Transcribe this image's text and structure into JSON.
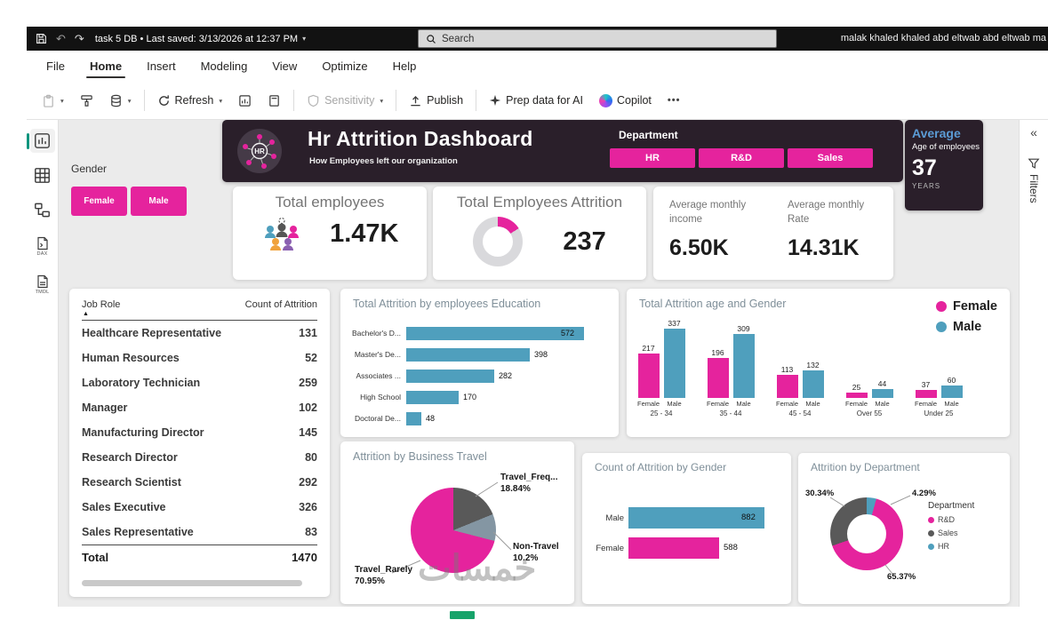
{
  "colors": {
    "pink": "#e5239d",
    "blue": "#4f9fbd",
    "dark_panel": "#2a1f2a",
    "gray_slice": "#595959",
    "steel_slice": "#8496a3",
    "green_accent": "#17a36a",
    "average_blue": "#5b9bd5",
    "card_donut_rest": "#d9d9dc"
  },
  "glyphs": {
    "caret_down": "▾",
    "sort_asc": "▲",
    "undo": "↶",
    "redo": "↷"
  },
  "titlebar": {
    "doc_title": "task 5 DB • Last saved: 3/13/2026 at 12:37 PM",
    "search_placeholder": "Search",
    "user_name": "malak khaled khaled abd eltwab abd eltwab ma"
  },
  "menu": {
    "items": [
      "File",
      "Home",
      "Insert",
      "Modeling",
      "View",
      "Optimize",
      "Help"
    ],
    "active": "Home"
  },
  "toolbar": {
    "refresh_label": "Refresh",
    "sensitivity_label": "Sensitivity",
    "publish_label": "Publish",
    "prep_ai_label": "Prep data for AI",
    "copilot_label": "Copilot",
    "more_label": "•••"
  },
  "left_rail": {
    "dax_label": "DAX",
    "tmdl_label": "TMDL"
  },
  "right_rail": {
    "collapse_glyph": "«",
    "filters_label": "Filters"
  },
  "dashboard": {
    "header": {
      "badge_text": "HR",
      "title": "Hr Attrition Dashboard",
      "subtitle": "How Employees left our organization",
      "department_label": "Department",
      "department_buttons": [
        "HR",
        "R&D",
        "Sales"
      ]
    },
    "average_age": {
      "line1": "Average",
      "line2": "Age of employees",
      "value": "37",
      "unit": "YEARS"
    },
    "gender_slicer": {
      "label": "Gender",
      "buttons": [
        "Female",
        "Male"
      ]
    },
    "cards": {
      "total_employees": {
        "title": "Total employees",
        "value": "1.47K"
      },
      "attrition": {
        "title": "Total Employees Attrition",
        "value": "237",
        "donut_pct": 16
      },
      "income": {
        "title": "Average monthly income",
        "value": "6.50K"
      },
      "rate": {
        "title": "Average monthly Rate",
        "value": "14.31K"
      }
    },
    "watermark": "خمسات"
  },
  "chart_data": [
    {
      "id": "job_table",
      "type": "table",
      "columns": [
        "Job Role",
        "Count of Attrition"
      ],
      "rows": [
        [
          "Healthcare Representative",
          "131"
        ],
        [
          "Human Resources",
          "52"
        ],
        [
          "Laboratory Technician",
          "259"
        ],
        [
          "Manager",
          "102"
        ],
        [
          "Manufacturing Director",
          "145"
        ],
        [
          "Research Director",
          "80"
        ],
        [
          "Research Scientist",
          "292"
        ],
        [
          "Sales Executive",
          "326"
        ],
        [
          "Sales Representative",
          "83"
        ]
      ],
      "total_row": [
        "Total",
        "1470"
      ]
    },
    {
      "id": "education",
      "type": "bar",
      "orientation": "horizontal",
      "title": "Total Attrition by employees Education",
      "categories": [
        "Bachelor's D...",
        "Master's De...",
        "Associates ...",
        "High School",
        "Doctoral De..."
      ],
      "values": [
        572,
        398,
        282,
        170,
        48
      ],
      "bar_color": "#4f9fbd",
      "xlim": [
        0,
        600
      ]
    },
    {
      "id": "age_gender",
      "type": "bar",
      "orientation": "vertical",
      "title": "Total Attrition age and Gender",
      "categories": [
        "25 - 34",
        "35 - 44",
        "45 - 54",
        "Over 55",
        "Under 25"
      ],
      "series": [
        {
          "name": "Female",
          "color": "#e5239d",
          "values": [
            217,
            196,
            113,
            25,
            37
          ]
        },
        {
          "name": "Male",
          "color": "#4f9fbd",
          "values": [
            337,
            309,
            132,
            44,
            60
          ]
        }
      ],
      "ylim": [
        0,
        360
      ],
      "legend_position": "top-right"
    },
    {
      "id": "business_travel",
      "type": "pie",
      "title": "Attrition by Business Travel",
      "slices": [
        {
          "label": "Travel_Freq...",
          "pct": 18.84,
          "color": "#595959"
        },
        {
          "label": "Non-Travel",
          "pct": 10.2,
          "color": "#8496a3"
        },
        {
          "label": "Travel_Rarely",
          "pct": 70.95,
          "color": "#e5239d"
        }
      ]
    },
    {
      "id": "gender_count",
      "type": "bar",
      "orientation": "horizontal",
      "title": "Count of Attrition by Gender",
      "categories": [
        "Male",
        "Female"
      ],
      "values": [
        882,
        588
      ],
      "colors": [
        "#4f9fbd",
        "#e5239d"
      ],
      "xlim": [
        0,
        950
      ]
    },
    {
      "id": "department",
      "type": "donut",
      "title": "Attrition by Department",
      "slices": [
        {
          "label": "HR",
          "pct": 4.29,
          "color": "#4f9fbd"
        },
        {
          "label": "R&D",
          "pct": 65.37,
          "color": "#e5239d"
        },
        {
          "label": "Sales",
          "pct": 30.34,
          "color": "#595959"
        }
      ],
      "legend_title": "Department",
      "legend": [
        {
          "label": "R&D",
          "color": "#e5239d"
        },
        {
          "label": "Sales",
          "color": "#595959"
        },
        {
          "label": "HR",
          "color": "#4f9fbd"
        }
      ]
    }
  ]
}
